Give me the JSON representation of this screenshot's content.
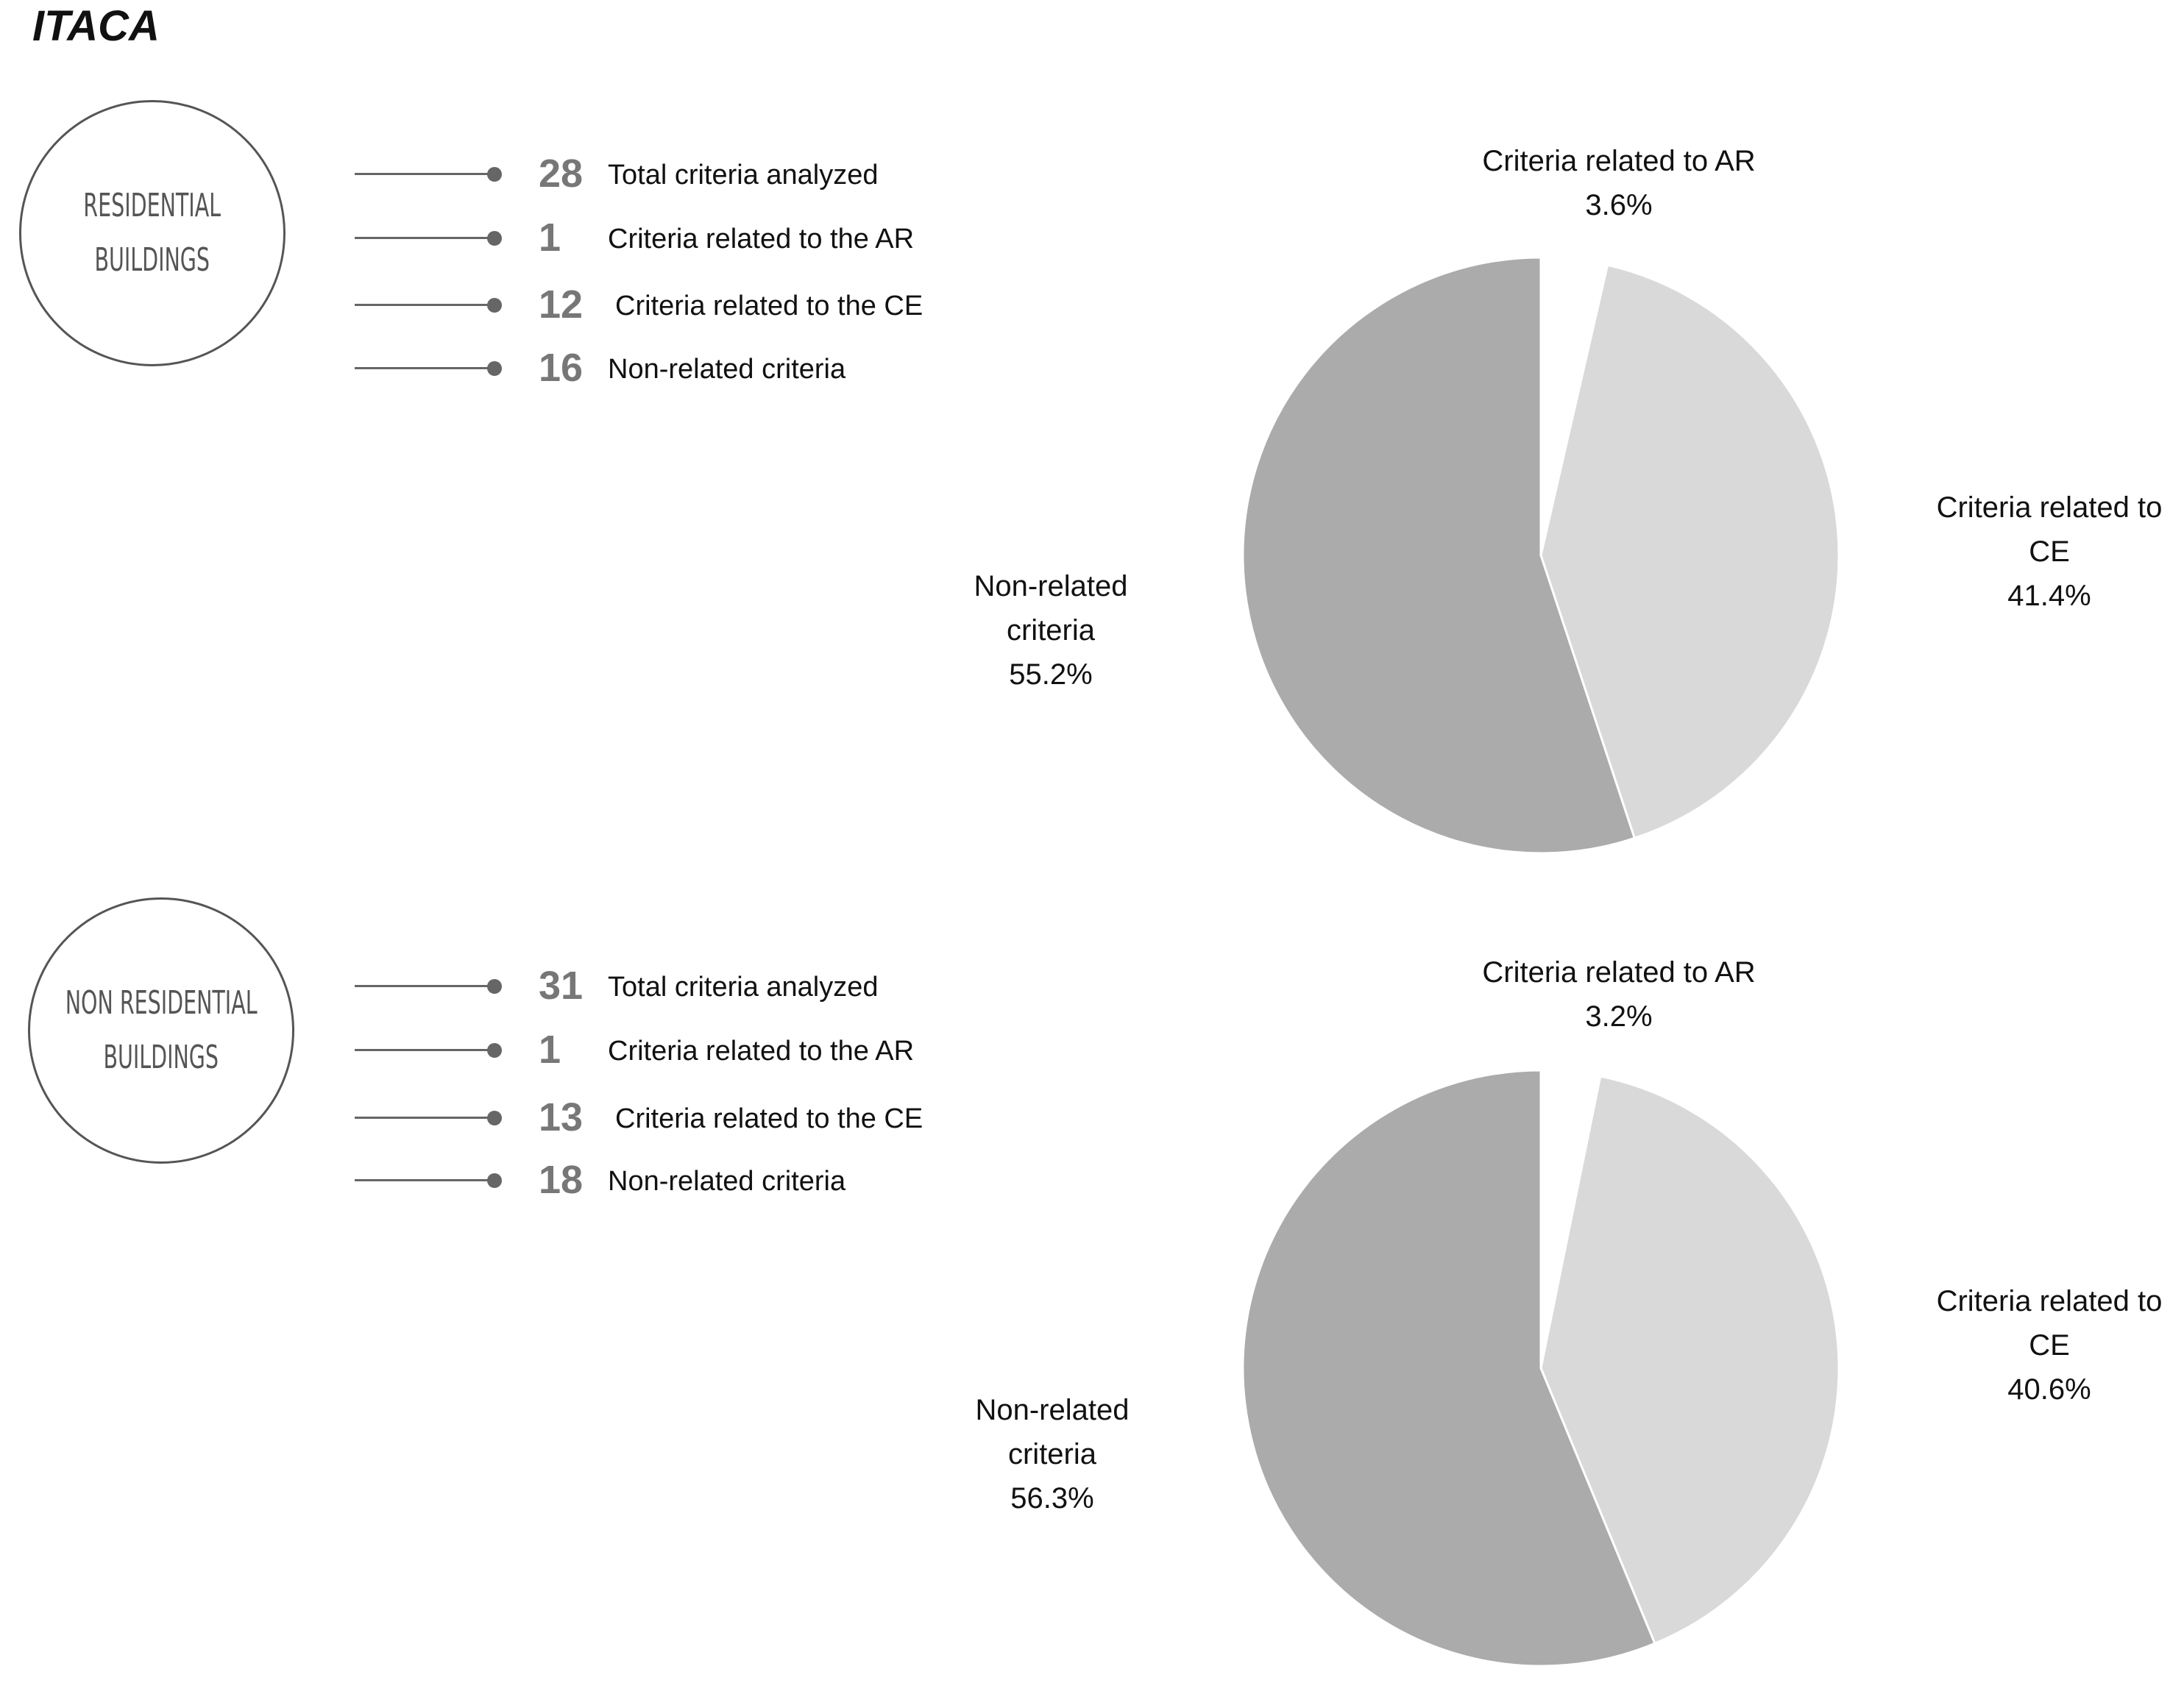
{
  "title": "ITACA",
  "sections": [
    {
      "badge": [
        "RESIDENTIAL",
        "BUILDINGS"
      ],
      "stats": [
        {
          "value": "28",
          "label": "Total criteria analyzed"
        },
        {
          "value": "1",
          "label": "Criteria related to the AR"
        },
        {
          "value": "12",
          "label": "Criteria related to the CE"
        },
        {
          "value": "16",
          "label": "Non-related criteria"
        }
      ]
    },
    {
      "badge": [
        "NON RESIDENTIAL",
        "BUILDINGS"
      ],
      "stats": [
        {
          "value": "31",
          "label": "Total criteria analyzed"
        },
        {
          "value": "1",
          "label": "Criteria related to the AR"
        },
        {
          "value": "13",
          "label": "Criteria related to the CE"
        },
        {
          "value": "18",
          "label": "Non-related criteria"
        }
      ]
    }
  ],
  "chart_data": [
    {
      "type": "pie",
      "slices": [
        {
          "name": "Criteria related to AR",
          "label_lines": [
            "Criteria related to AR"
          ],
          "value": 3.6,
          "value_label": "3.6%",
          "color": "#ffffff"
        },
        {
          "name": "Criteria related to CE",
          "label_lines": [
            "Criteria related to",
            "CE"
          ],
          "value": 41.4,
          "value_label": "41.4%",
          "color": "#d9d9d9"
        },
        {
          "name": "Non-related criteria",
          "label_lines": [
            "Non-related",
            "criteria"
          ],
          "value": 55.2,
          "value_label": "55.2%",
          "color": "#ababab"
        }
      ]
    },
    {
      "type": "pie",
      "slices": [
        {
          "name": "Criteria related to AR",
          "label_lines": [
            "Criteria related to AR"
          ],
          "value": 3.2,
          "value_label": "3.2%",
          "color": "#ffffff"
        },
        {
          "name": "Criteria related to CE",
          "label_lines": [
            "Criteria related to",
            "CE"
          ],
          "value": 40.6,
          "value_label": "40.6%",
          "color": "#d9d9d9"
        },
        {
          "name": "Non-related criteria",
          "label_lines": [
            "Non-related",
            "criteria"
          ],
          "value": 56.3,
          "value_label": "56.3%",
          "color": "#ababab"
        }
      ]
    }
  ]
}
